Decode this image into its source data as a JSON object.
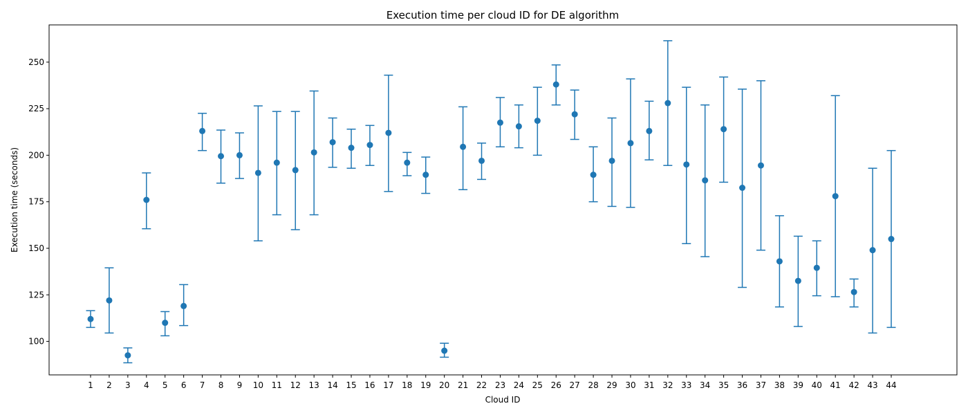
{
  "chart_data": {
    "type": "scatter",
    "title": "Execution time per cloud ID for DE algorithm",
    "xlabel": "Cloud ID",
    "ylabel": "Execution time (seconds)",
    "ylim": [
      82,
      270
    ],
    "yticks": [
      100,
      125,
      150,
      175,
      200,
      225,
      250
    ],
    "grid": false,
    "color": "#1f77b4",
    "categories": [
      "1",
      "2",
      "3",
      "4",
      "5",
      "6",
      "7",
      "8",
      "9",
      "10",
      "11",
      "12",
      "13",
      "14",
      "15",
      "16",
      "17",
      "18",
      "19",
      "20",
      "21",
      "22",
      "23",
      "24",
      "25",
      "26",
      "27",
      "28",
      "29",
      "30",
      "31",
      "32",
      "33",
      "34",
      "35",
      "36",
      "37",
      "38",
      "39",
      "40",
      "41",
      "42",
      "43",
      "44"
    ],
    "means": [
      112,
      122,
      92.5,
      176,
      110,
      119,
      213,
      199.5,
      200,
      190.5,
      196,
      192,
      201.5,
      207,
      204,
      205.5,
      212,
      196,
      189.5,
      95,
      204.5,
      197,
      217.5,
      215.5,
      218.5,
      238,
      222,
      189.5,
      197,
      206.5,
      213,
      228,
      195,
      186.5,
      214,
      182.5,
      194.5,
      143,
      132.5,
      139.5,
      178,
      126.5,
      149,
      155
    ],
    "lower": [
      107.5,
      104.5,
      88.5,
      160.5,
      103,
      108.5,
      202.5,
      185,
      187.5,
      154,
      168,
      160,
      168,
      193.5,
      193,
      194.5,
      180.5,
      189,
      179.5,
      91.5,
      181.5,
      187,
      204.5,
      204,
      200,
      227,
      208.5,
      175,
      172.5,
      172,
      197.5,
      194.5,
      152.5,
      145.5,
      185.5,
      129,
      149,
      118.5,
      108,
      124.5,
      124,
      118.5,
      104.5,
      107.5
    ],
    "upper": [
      116.5,
      139.5,
      96.5,
      190.5,
      116,
      130.5,
      222.5,
      213.5,
      212,
      226.5,
      223.5,
      223.5,
      234.5,
      220,
      214,
      216,
      243,
      201.5,
      199,
      99,
      226,
      206.5,
      231,
      227,
      236.5,
      248.5,
      235,
      204.5,
      220,
      241,
      229,
      261.5,
      236.5,
      227,
      242,
      235.5,
      240,
      167.5,
      156.5,
      154,
      232,
      133.5,
      193,
      202.5
    ]
  }
}
